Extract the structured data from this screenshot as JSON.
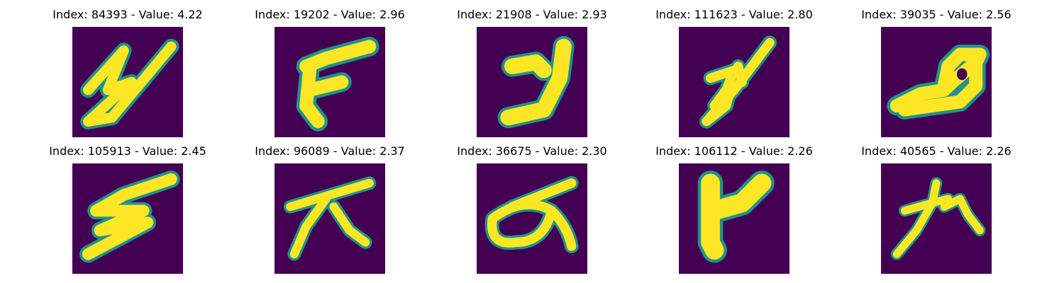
{
  "panels": [
    {
      "title": "Index: 84393 - Value: 4.22"
    },
    {
      "title": "Index: 19202 - Value: 2.96"
    },
    {
      "title": "Index: 21908 - Value: 2.93"
    },
    {
      "title": "Index: 111623 - Value: 2.80"
    },
    {
      "title": "Index: 39035 - Value: 2.56"
    },
    {
      "title": "Index: 105913 - Value: 2.45"
    },
    {
      "title": "Index: 96089 - Value: 2.37"
    },
    {
      "title": "Index: 36675 - Value: 2.30"
    },
    {
      "title": "Index: 106112 - Value: 2.26"
    },
    {
      "title": "Index: 40565 - Value: 2.26"
    }
  ],
  "colors": {
    "background": "#440154",
    "stroke": "#fde725",
    "edge": "#21918c"
  }
}
